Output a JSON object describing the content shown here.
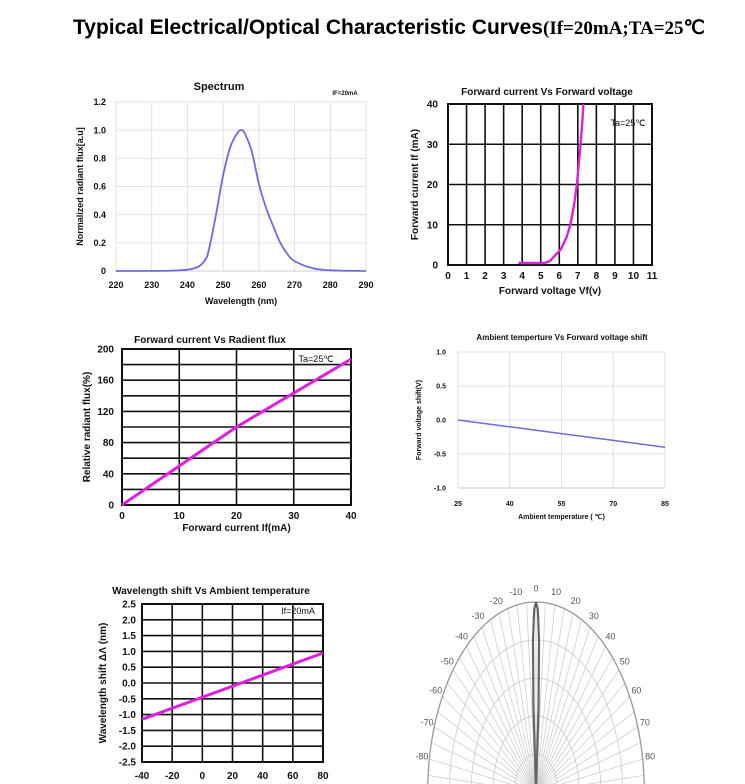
{
  "page": {
    "title_main": "Typical Electrical/Optical Characteristic Curves",
    "title_conditions": "(If=20mA;TA=25℃"
  },
  "chart_data": [
    {
      "type": "line",
      "title": "Spectrum",
      "annotation": "IF=20mA",
      "xlabel": "Wavelength (nm)",
      "ylabel": "Normalized radiant  flux[a.u]",
      "xlim": [
        220,
        290
      ],
      "ylim": [
        0,
        1.2
      ],
      "xticks": [
        "220",
        "230",
        "240",
        "250",
        "260",
        "270",
        "280",
        "290"
      ],
      "yticks": [
        "0",
        "0.2",
        "0.4",
        "0.6",
        "0.8",
        "1.0",
        "1.2"
      ],
      "grid": true,
      "grid_style": "light",
      "color": "#6b6be8",
      "x": [
        220,
        235,
        240,
        243,
        245,
        246,
        248,
        250,
        252,
        254,
        255,
        256,
        258,
        260,
        262,
        264,
        266,
        268,
        270,
        275,
        280,
        290
      ],
      "y": [
        0,
        0.002,
        0.01,
        0.03,
        0.08,
        0.15,
        0.4,
        0.68,
        0.88,
        0.98,
        1.0,
        0.98,
        0.85,
        0.62,
        0.45,
        0.32,
        0.2,
        0.12,
        0.07,
        0.02,
        0.005,
        0
      ]
    },
    {
      "type": "line",
      "title": "Forward current Vs  Forward  voltage",
      "annotation": "Ta=25℃",
      "xlabel": "Forward voltage Vf(v)",
      "ylabel": "Forward current  If (mA)",
      "xlim": [
        0,
        11
      ],
      "ylim": [
        0,
        40
      ],
      "xticks": [
        "0",
        "1",
        "2",
        "3",
        "4",
        "5",
        "6",
        "7",
        "8",
        "9",
        "10",
        "11"
      ],
      "yticks": [
        "0",
        "10",
        "20",
        "30",
        "40"
      ],
      "grid": true,
      "grid_style": "dark",
      "color": "#e01ee0",
      "x": [
        3.8,
        5.2,
        5.5,
        5.8,
        6.1,
        6.4,
        6.6,
        6.8,
        6.95,
        7.05,
        7.15,
        7.25,
        7.3
      ],
      "y": [
        0.5,
        0.5,
        1,
        2.5,
        4,
        7,
        10,
        15,
        20,
        25,
        30,
        36,
        40
      ]
    },
    {
      "type": "line",
      "title": "Ambient temperture Vs  Forward voltage shift",
      "xlabel": "Ambient temperature ( ℃)",
      "ylabel": "Forward   voltage shift(V)",
      "xlim": [
        25,
        85
      ],
      "ylim": [
        -1.0,
        1.0
      ],
      "xticks": [
        "25",
        "40",
        "55",
        "70",
        "85"
      ],
      "yticks": [
        "-1.0",
        "-0.5",
        "0.0",
        "0.5",
        "1.0"
      ],
      "grid": true,
      "grid_style": "light",
      "color": "#6b6be8",
      "x": [
        25,
        40,
        55,
        70,
        85
      ],
      "y": [
        0,
        -0.1,
        -0.2,
        -0.3,
        -0.4
      ]
    },
    {
      "type": "line",
      "title": "Forward  current Vs Radient  flux",
      "annotation": "Ta=25℃",
      "xlabel": "Forward  current If(mA)",
      "ylabel": "Relative radiant  flux(%)",
      "xlim": [
        0,
        40
      ],
      "ylim": [
        0,
        200
      ],
      "xticks": [
        "0",
        "10",
        "20",
        "30",
        "40"
      ],
      "yticks": [
        "0",
        "40",
        "80",
        "120",
        "160",
        "200"
      ],
      "grid": true,
      "grid_style": "dark",
      "color": "#e01ee0",
      "x": [
        0,
        20,
        40
      ],
      "y": [
        0,
        100,
        187
      ]
    },
    {
      "type": "line",
      "title": "Wavelength shift  Vs  Ambient  temperature",
      "annotation": "If=20mA",
      "ylabel": "Wavelength  shift ΔΛ (nm)",
      "xlim": [
        -40,
        80
      ],
      "ylim": [
        -2.5,
        2.5
      ],
      "xticks": [
        "-40",
        "-20",
        "0",
        "20",
        "40",
        "60",
        "80"
      ],
      "yticks": [
        "-2.5",
        "-2.0",
        "-1.5",
        "-1.0",
        "-0.5",
        "0.0",
        "0.5",
        "1.0",
        "1.5",
        "2.0",
        "2.5"
      ],
      "grid": true,
      "grid_style": "dark",
      "color": "#e01ee0",
      "x": [
        -40,
        80
      ],
      "y": [
        -1.15,
        0.95
      ]
    },
    {
      "type": "polar",
      "angle_labels": [
        "-80",
        "-70",
        "-60",
        "-50",
        "-40",
        "-30",
        "-20",
        "-10",
        "0",
        "10",
        "20",
        "30",
        "40",
        "50",
        "60",
        "70",
        "80"
      ],
      "rlim": [
        0,
        1
      ],
      "grid": true,
      "color": "#666666",
      "angle": [
        -4,
        -3,
        -2,
        -1,
        0,
        1,
        2,
        3,
        4
      ],
      "r": [
        0,
        0.45,
        0.8,
        0.96,
        1.0,
        0.96,
        0.8,
        0.45,
        0
      ]
    }
  ]
}
